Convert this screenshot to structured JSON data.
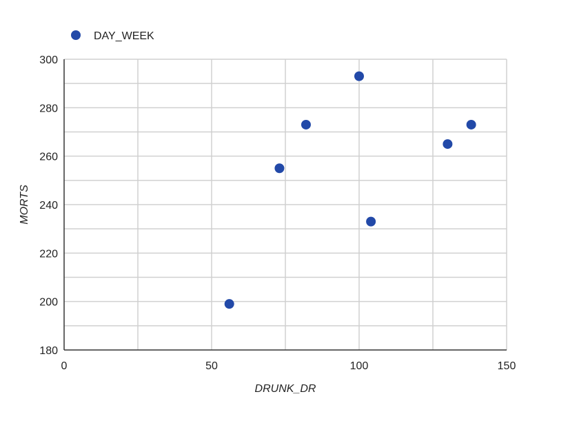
{
  "chart_data": {
    "type": "scatter",
    "xlabel": "DRUNK_DR",
    "ylabel": "MORTS",
    "xlim": [
      0,
      150
    ],
    "ylim": [
      180,
      300
    ],
    "x_ticks": [
      0,
      50,
      100,
      150
    ],
    "y_ticks": [
      180,
      200,
      220,
      240,
      260,
      280,
      300
    ],
    "grid": true,
    "legend": "top-left",
    "series": [
      {
        "name": "DAY_WEEK",
        "color": "#2249a8",
        "points": [
          {
            "x": 56,
            "y": 199
          },
          {
            "x": 73,
            "y": 255
          },
          {
            "x": 82,
            "y": 273
          },
          {
            "x": 100,
            "y": 293
          },
          {
            "x": 104,
            "y": 233
          },
          {
            "x": 130,
            "y": 265
          },
          {
            "x": 138,
            "y": 273
          }
        ]
      }
    ]
  }
}
